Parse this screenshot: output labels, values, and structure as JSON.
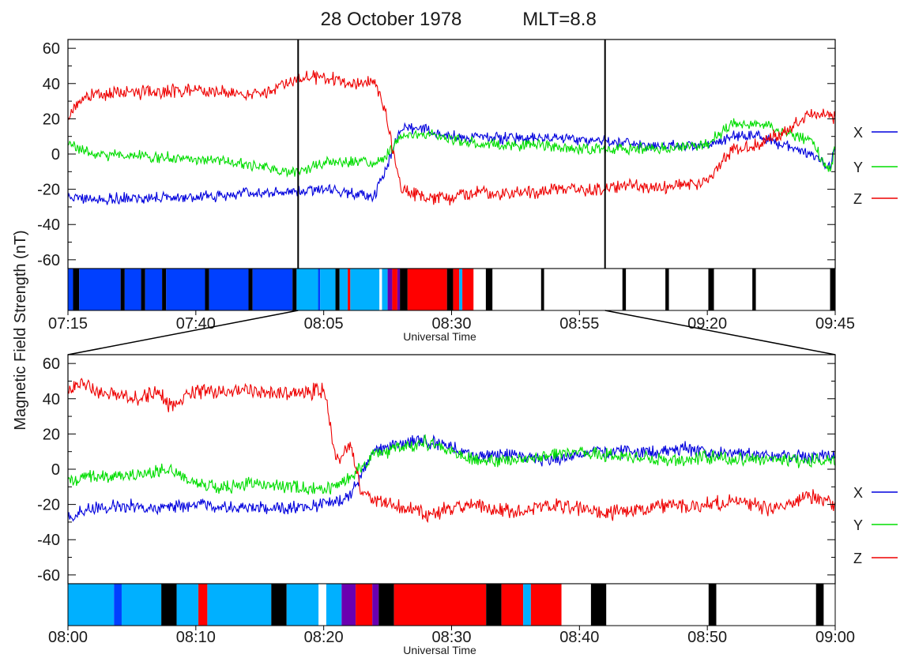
{
  "title": "28 October 1978",
  "subtitle": "MLT=8.8",
  "ylabel": "Magnetic Field Strength (nT)",
  "colors": {
    "X": "#0000dd",
    "Y": "#00dd00",
    "Z": "#ee0000",
    "axis": "#000000"
  },
  "band_colors": {
    "blue": "#0040ff",
    "cyan": "#00b0ff",
    "purple": "#6a00b0",
    "red": "#ff0000",
    "black": "#000000",
    "white": "#ffffff"
  },
  "chart_data": [
    {
      "type": "line",
      "panel": "top",
      "xlabel": "Universal Time",
      "xlim_min": [
        435,
        585
      ],
      "x_ticks_min": [
        435,
        460,
        485,
        510,
        535,
        560,
        585
      ],
      "x_tick_labels": [
        "07:15",
        "07:40",
        "08:05",
        "08:30",
        "08:55",
        "09:20",
        "09:45"
      ],
      "ylim": [
        -65,
        65
      ],
      "y_ticks": [
        -60,
        -40,
        -20,
        0,
        20,
        40,
        60
      ],
      "y_tick_labels": [
        "-60",
        "-40",
        "-20",
        "0",
        "20",
        "40",
        "60"
      ],
      "zoom_markers_min": [
        480,
        540
      ],
      "legend": [
        {
          "name": "X",
          "color": "#0000dd"
        },
        {
          "name": "Y",
          "color": "#00dd00"
        },
        {
          "name": "Z",
          "color": "#ee0000"
        }
      ],
      "series": [
        {
          "name": "X",
          "color": "#0000dd",
          "noise": 2.5,
          "x": [
            435,
            440,
            445,
            450,
            455,
            460,
            465,
            470,
            475,
            480,
            485,
            490,
            495,
            497,
            500,
            505,
            510,
            515,
            520,
            525,
            530,
            535,
            540,
            545,
            550,
            555,
            560,
            565,
            570,
            575,
            580,
            584,
            585
          ],
          "y": [
            -24,
            -26,
            -25,
            -25,
            -25,
            -24,
            -24,
            -22,
            -22,
            -21,
            -20,
            -22,
            -24,
            -10,
            15,
            14,
            10,
            10,
            9,
            9,
            9,
            8,
            7,
            6,
            5,
            5,
            5,
            10,
            10,
            5,
            0,
            -7,
            5
          ]
        },
        {
          "name": "Y",
          "color": "#00dd00",
          "noise": 2.5,
          "x": [
            435,
            440,
            445,
            450,
            455,
            460,
            465,
            470,
            475,
            480,
            485,
            490,
            495,
            497,
            500,
            505,
            510,
            515,
            520,
            525,
            530,
            535,
            540,
            545,
            550,
            555,
            560,
            565,
            570,
            575,
            580,
            584,
            585
          ],
          "y": [
            6,
            0,
            -1,
            -1,
            -2,
            -3,
            -4,
            -6,
            -8,
            -10,
            -5,
            -4,
            -6,
            -2,
            10,
            12,
            8,
            6,
            5,
            5,
            4,
            3,
            3,
            3,
            3,
            4,
            6,
            17,
            18,
            12,
            8,
            -10,
            5
          ]
        },
        {
          "name": "Z",
          "color": "#ee0000",
          "noise": 3.0,
          "x": [
            435,
            437,
            440,
            445,
            450,
            455,
            460,
            465,
            470,
            475,
            478,
            480,
            485,
            490,
            495,
            497,
            500,
            505,
            510,
            515,
            520,
            525,
            530,
            535,
            540,
            545,
            550,
            555,
            560,
            565,
            570,
            575,
            580,
            584,
            585
          ],
          "y": [
            22,
            28,
            34,
            35,
            35,
            36,
            36,
            35,
            34,
            37,
            40,
            43,
            44,
            40,
            41,
            25,
            -20,
            -25,
            -25,
            -22,
            -22,
            -22,
            -20,
            -20,
            -20,
            -18,
            -20,
            -18,
            -15,
            2,
            6,
            12,
            23,
            22,
            20
          ]
        }
      ],
      "bands": [
        {
          "start": 435,
          "end": 436,
          "color": "blue"
        },
        {
          "start": 436,
          "end": 437.2,
          "color": "black"
        },
        {
          "start": 437.2,
          "end": 445.3,
          "color": "blue"
        },
        {
          "start": 445.3,
          "end": 446.1,
          "color": "black"
        },
        {
          "start": 446.1,
          "end": 449.3,
          "color": "blue"
        },
        {
          "start": 449.3,
          "end": 450.1,
          "color": "black"
        },
        {
          "start": 450.1,
          "end": 453.4,
          "color": "blue"
        },
        {
          "start": 453.4,
          "end": 454.2,
          "color": "black"
        },
        {
          "start": 454.2,
          "end": 461.8,
          "color": "blue"
        },
        {
          "start": 461.8,
          "end": 462.6,
          "color": "black"
        },
        {
          "start": 462.6,
          "end": 470.3,
          "color": "blue"
        },
        {
          "start": 470.3,
          "end": 471.1,
          "color": "black"
        },
        {
          "start": 471.1,
          "end": 478.9,
          "color": "blue"
        },
        {
          "start": 478.9,
          "end": 479.7,
          "color": "black"
        },
        {
          "start": 479.7,
          "end": 483.9,
          "color": "cyan"
        },
        {
          "start": 483.9,
          "end": 484.3,
          "color": "blue"
        },
        {
          "start": 484.3,
          "end": 487.3,
          "color": "cyan"
        },
        {
          "start": 487.3,
          "end": 488.1,
          "color": "black"
        },
        {
          "start": 488.1,
          "end": 489.7,
          "color": "cyan"
        },
        {
          "start": 489.7,
          "end": 490.2,
          "color": "red"
        },
        {
          "start": 490.2,
          "end": 495.9,
          "color": "cyan"
        },
        {
          "start": 495.9,
          "end": 496.4,
          "color": "white"
        },
        {
          "start": 496.4,
          "end": 497.5,
          "color": "cyan"
        },
        {
          "start": 497.5,
          "end": 498.4,
          "color": "purple"
        },
        {
          "start": 498.4,
          "end": 499.4,
          "color": "red"
        },
        {
          "start": 499.4,
          "end": 499.9,
          "color": "purple"
        },
        {
          "start": 499.9,
          "end": 501.4,
          "color": "black"
        },
        {
          "start": 501.4,
          "end": 509.1,
          "color": "red"
        },
        {
          "start": 509.1,
          "end": 510.3,
          "color": "black"
        },
        {
          "start": 510.3,
          "end": 511.5,
          "color": "red"
        },
        {
          "start": 511.5,
          "end": 512.1,
          "color": "cyan"
        },
        {
          "start": 512.1,
          "end": 514.3,
          "color": "red"
        },
        {
          "start": 514.3,
          "end": 516.7,
          "color": "white"
        },
        {
          "start": 516.7,
          "end": 518,
          "color": "black"
        },
        {
          "start": 518,
          "end": 527.5,
          "color": "white"
        },
        {
          "start": 527.5,
          "end": 528.1,
          "color": "black"
        },
        {
          "start": 528.1,
          "end": 543.4,
          "color": "white"
        },
        {
          "start": 543.4,
          "end": 544.1,
          "color": "black"
        },
        {
          "start": 544.1,
          "end": 551.8,
          "color": "white"
        },
        {
          "start": 551.8,
          "end": 552.5,
          "color": "black"
        },
        {
          "start": 552.5,
          "end": 560.2,
          "color": "white"
        },
        {
          "start": 560.2,
          "end": 561.3,
          "color": "black"
        },
        {
          "start": 561.3,
          "end": 568.8,
          "color": "white"
        },
        {
          "start": 568.8,
          "end": 569.5,
          "color": "black"
        },
        {
          "start": 569.5,
          "end": 584,
          "color": "white"
        },
        {
          "start": 584,
          "end": 585,
          "color": "black"
        }
      ]
    },
    {
      "type": "line",
      "panel": "bottom",
      "xlabel": "Universal Time",
      "xlim_min": [
        480,
        540
      ],
      "x_ticks_min": [
        480,
        490,
        500,
        510,
        520,
        530,
        540
      ],
      "x_tick_labels": [
        "08:00",
        "08:10",
        "08:20",
        "08:30",
        "08:40",
        "08:50",
        "09:00"
      ],
      "ylim": [
        -65,
        65
      ],
      "y_ticks": [
        -60,
        -40,
        -20,
        0,
        20,
        40,
        60
      ],
      "y_tick_labels": [
        "-60",
        "-40",
        "-20",
        "0",
        "20",
        "40",
        "60"
      ],
      "legend": [
        {
          "name": "X",
          "color": "#0000dd"
        },
        {
          "name": "Y",
          "color": "#00dd00"
        },
        {
          "name": "Z",
          "color": "#ee0000"
        }
      ],
      "series": [
        {
          "name": "X",
          "color": "#0000dd",
          "noise": 3.0,
          "x": [
            480,
            482,
            485,
            488,
            490,
            492,
            495,
            498,
            500,
            502,
            504,
            506,
            508,
            510,
            512,
            515,
            518,
            520,
            522,
            525,
            528,
            530,
            532,
            535,
            538,
            540
          ],
          "y": [
            -28,
            -22,
            -21,
            -22,
            -20,
            -21,
            -22,
            -22,
            -20,
            -15,
            10,
            15,
            16,
            12,
            8,
            8,
            5,
            8,
            10,
            9,
            12,
            10,
            9,
            8,
            7,
            8
          ]
        },
        {
          "name": "Y",
          "color": "#00dd00",
          "noise": 3.0,
          "x": [
            480,
            482,
            485,
            488,
            490,
            492,
            495,
            498,
            500,
            502,
            504,
            506,
            508,
            510,
            512,
            515,
            518,
            520,
            522,
            525,
            528,
            530,
            532,
            535,
            538,
            540
          ],
          "y": [
            -6,
            -4,
            -3,
            0,
            -8,
            -10,
            -8,
            -10,
            -12,
            -5,
            8,
            12,
            15,
            10,
            5,
            5,
            8,
            10,
            8,
            6,
            5,
            7,
            6,
            5,
            5,
            5
          ]
        },
        {
          "name": "Z",
          "color": "#ee0000",
          "noise": 3.5,
          "x": [
            480,
            481,
            483,
            485,
            487,
            488,
            490,
            492,
            494,
            496,
            498,
            500,
            501,
            502,
            503,
            505,
            508,
            510,
            512,
            515,
            518,
            520,
            522,
            525,
            528,
            530,
            532,
            535,
            538,
            540
          ],
          "y": [
            44,
            48,
            43,
            40,
            43,
            36,
            44,
            44,
            45,
            44,
            43,
            45,
            5,
            15,
            -15,
            -20,
            -25,
            -22,
            -20,
            -25,
            -20,
            -22,
            -25,
            -22,
            -20,
            -20,
            -18,
            -22,
            -15,
            -20
          ]
        }
      ],
      "bands": [
        {
          "start": 480,
          "end": 483.6,
          "color": "cyan"
        },
        {
          "start": 483.6,
          "end": 484.2,
          "color": "blue"
        },
        {
          "start": 484.2,
          "end": 487.3,
          "color": "cyan"
        },
        {
          "start": 487.3,
          "end": 488.5,
          "color": "black"
        },
        {
          "start": 488.5,
          "end": 490.2,
          "color": "cyan"
        },
        {
          "start": 490.2,
          "end": 490.9,
          "color": "red"
        },
        {
          "start": 490.9,
          "end": 495.9,
          "color": "cyan"
        },
        {
          "start": 495.9,
          "end": 497.1,
          "color": "black"
        },
        {
          "start": 497.1,
          "end": 499.6,
          "color": "cyan"
        },
        {
          "start": 499.6,
          "end": 500.2,
          "color": "white"
        },
        {
          "start": 500.2,
          "end": 501.4,
          "color": "cyan"
        },
        {
          "start": 501.4,
          "end": 502.5,
          "color": "purple"
        },
        {
          "start": 502.5,
          "end": 503.8,
          "color": "red"
        },
        {
          "start": 503.8,
          "end": 504.3,
          "color": "purple"
        },
        {
          "start": 504.3,
          "end": 505.5,
          "color": "black"
        },
        {
          "start": 505.5,
          "end": 512.7,
          "color": "red"
        },
        {
          "start": 512.7,
          "end": 513.9,
          "color": "black"
        },
        {
          "start": 513.9,
          "end": 515.6,
          "color": "red"
        },
        {
          "start": 515.6,
          "end": 516.2,
          "color": "cyan"
        },
        {
          "start": 516.2,
          "end": 518.6,
          "color": "red"
        },
        {
          "start": 518.6,
          "end": 520.9,
          "color": "white"
        },
        {
          "start": 520.9,
          "end": 522.1,
          "color": "black"
        },
        {
          "start": 522.1,
          "end": 530.1,
          "color": "white"
        },
        {
          "start": 530.1,
          "end": 530.7,
          "color": "black"
        },
        {
          "start": 530.7,
          "end": 538.5,
          "color": "white"
        },
        {
          "start": 538.5,
          "end": 539.1,
          "color": "black"
        },
        {
          "start": 539.1,
          "end": 540,
          "color": "white"
        }
      ]
    }
  ]
}
